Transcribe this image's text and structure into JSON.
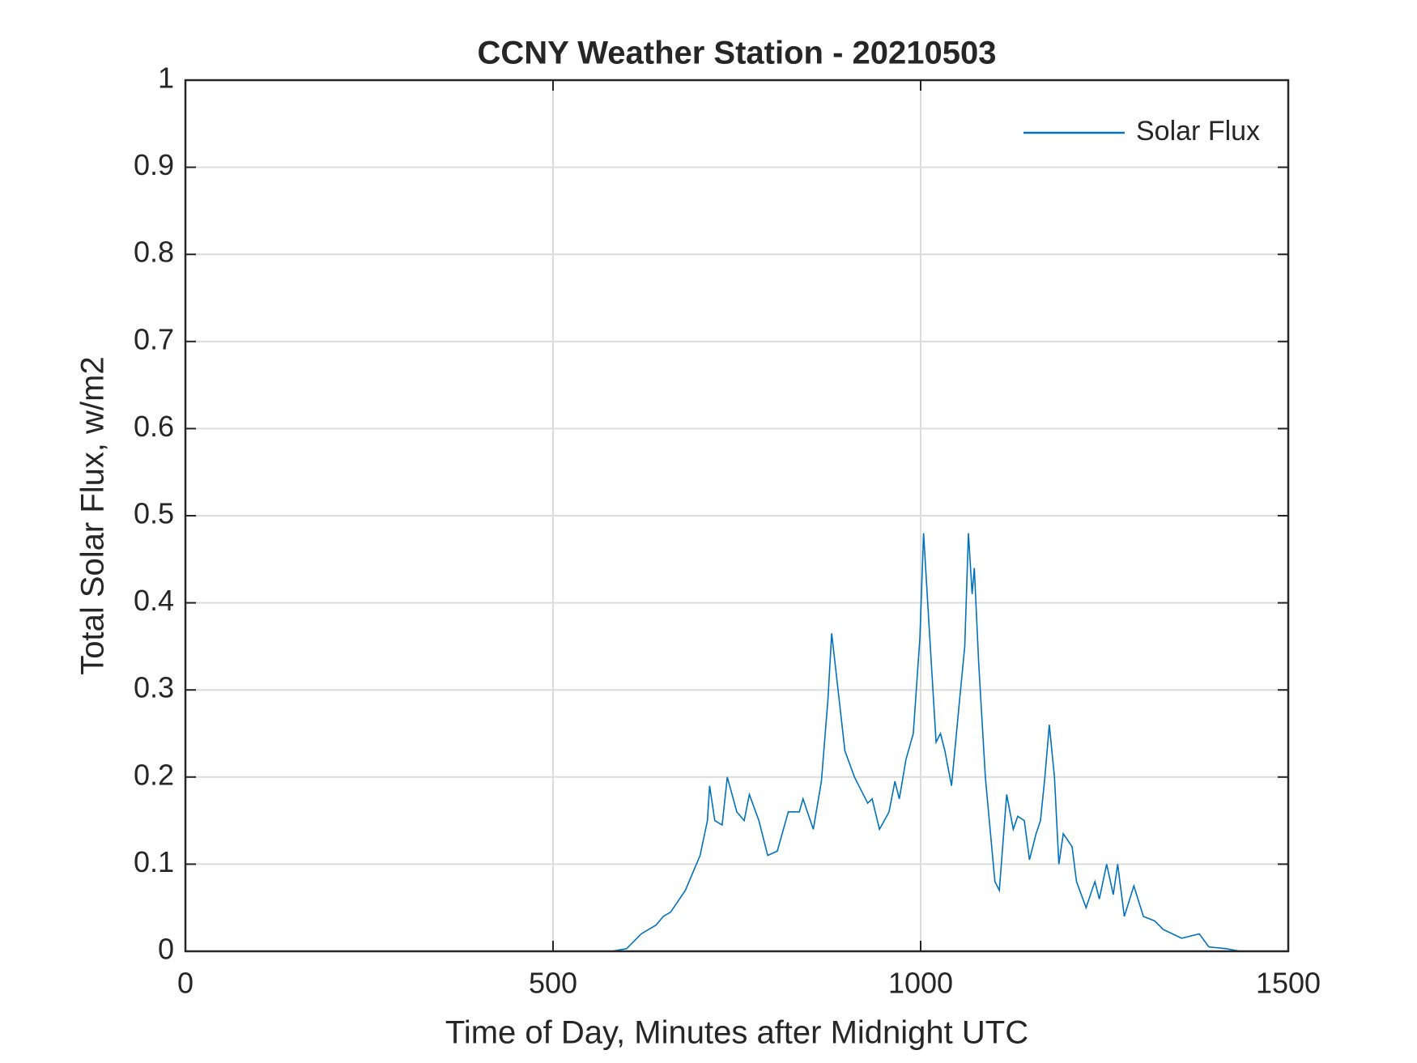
{
  "chart_data": {
    "type": "line",
    "title": "CCNY Weather Station - 20210503",
    "xlabel": "Time of Day, Minutes after Midnight UTC",
    "ylabel": "Total Solar Flux, w/m2",
    "x": [
      0,
      580,
      600,
      620,
      640,
      650,
      660,
      680,
      690,
      700,
      710,
      713,
      720,
      730,
      737,
      750,
      760,
      767,
      780,
      792,
      805,
      820,
      835,
      840,
      854,
      865,
      874,
      879,
      885,
      897,
      910,
      928,
      934,
      944,
      957,
      965,
      971,
      980,
      990,
      999,
      1004,
      1011,
      1021,
      1027,
      1033,
      1042,
      1052,
      1060,
      1065,
      1070,
      1073,
      1079,
      1088,
      1101,
      1107,
      1117,
      1126,
      1132,
      1141,
      1148,
      1157,
      1163,
      1169,
      1175,
      1182,
      1188,
      1194,
      1206,
      1212,
      1225,
      1237,
      1243,
      1253,
      1262,
      1268,
      1277,
      1290,
      1303,
      1318,
      1330,
      1355,
      1379,
      1392,
      1416,
      1434,
      1440
    ],
    "series": [
      {
        "name": "Solar Flux",
        "color": "#0072bd",
        "values": [
          0,
          0,
          0.003,
          0.02,
          0.03,
          0.04,
          0.045,
          0.07,
          0.09,
          0.11,
          0.15,
          0.19,
          0.15,
          0.145,
          0.2,
          0.16,
          0.15,
          0.18,
          0.15,
          0.11,
          0.115,
          0.16,
          0.16,
          0.175,
          0.14,
          0.195,
          0.29,
          0.365,
          0.32,
          0.23,
          0.2,
          0.17,
          0.175,
          0.14,
          0.16,
          0.195,
          0.175,
          0.22,
          0.25,
          0.36,
          0.48,
          0.38,
          0.24,
          0.25,
          0.23,
          0.19,
          0.28,
          0.35,
          0.48,
          0.41,
          0.44,
          0.33,
          0.2,
          0.08,
          0.07,
          0.18,
          0.14,
          0.155,
          0.15,
          0.105,
          0.135,
          0.15,
          0.2,
          0.26,
          0.2,
          0.1,
          0.135,
          0.12,
          0.08,
          0.05,
          0.08,
          0.06,
          0.1,
          0.065,
          0.1,
          0.04,
          0.075,
          0.04,
          0.035,
          0.025,
          0.015,
          0.02,
          0.005,
          0.003,
          0,
          0
        ]
      }
    ],
    "xlim": [
      0,
      1500
    ],
    "xticks": [
      0,
      500,
      1000,
      1500
    ],
    "ylim": [
      0,
      1
    ],
    "yticks": [
      0,
      0.1,
      0.2,
      0.3,
      0.4,
      0.5,
      0.6,
      0.7,
      0.8,
      0.9,
      1
    ],
    "grid": true,
    "legend": "northeast"
  }
}
